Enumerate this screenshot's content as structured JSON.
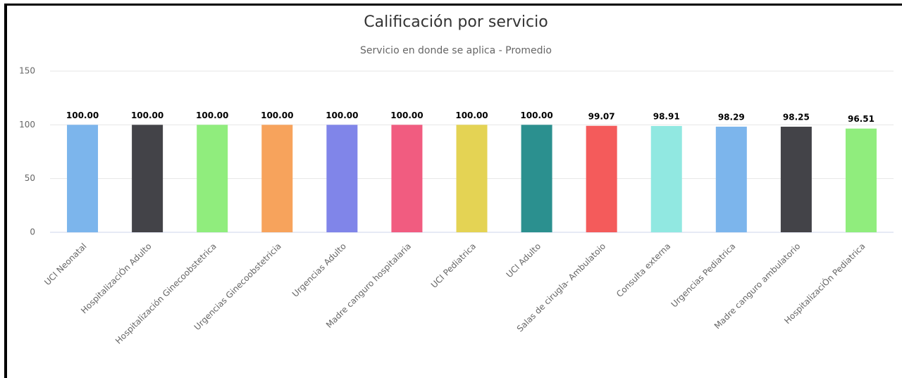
{
  "chart_data": {
    "type": "bar",
    "title": "Calificación por servicio",
    "subtitle": "Servicio en donde se aplica - Promedio",
    "categories": [
      "UCI Neonatal",
      "HospitalizaciÓn Adulto",
      "Hospitalización Ginecoobstetrica",
      "Urgencias Ginecoobstetricia",
      "Urgencias Adulto",
      "Madre canguro hospitalaria",
      "UCI Pediatrica",
      "UCI Adulto",
      "Salas de cirugla- Ambulatoio",
      "Consulta externa",
      "Urgencias Pediatrica",
      "Madre canguro ambulatorio",
      "HospitalizaciÓn Pediatrica"
    ],
    "values": [
      100,
      100,
      100,
      100,
      100,
      100,
      100,
      100,
      99.07,
      98.91,
      98.29,
      98.25,
      96.51
    ],
    "value_labels": [
      "100.00",
      "100.00",
      "100.00",
      "100.00",
      "100.00",
      "100.00",
      "100.00",
      "100.00",
      "99.07",
      "98.91",
      "98.29",
      "98.25",
      "96.51"
    ],
    "colors": [
      "#7cb5ec",
      "#434348",
      "#90ed7d",
      "#f7a35c",
      "#8085e9",
      "#f15c80",
      "#e4d354",
      "#2b908f",
      "#f45b5b",
      "#91e8e1",
      "#7cb5ec",
      "#434348",
      "#90ed7d"
    ],
    "ylim": [
      0,
      150
    ],
    "yticks": [
      0,
      50,
      100,
      150
    ],
    "grid": true
  }
}
